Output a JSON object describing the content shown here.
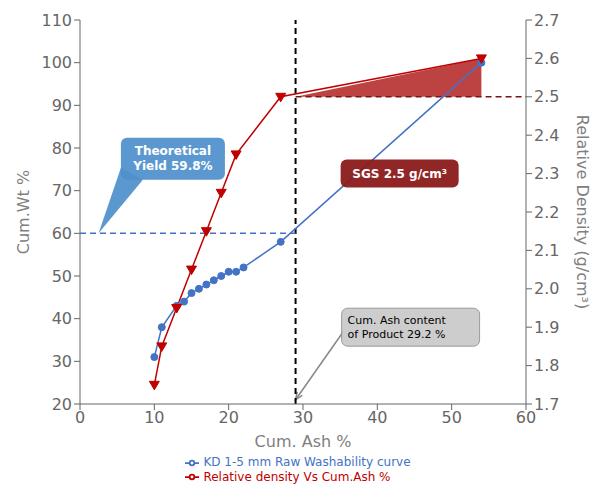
{
  "chart_data": {
    "type": "line",
    "xlabel": "Cum. Ash %",
    "ylabel": "Cum.Wt %",
    "y2label": "Relative Density (g/cm³)",
    "xlim": [
      0,
      60
    ],
    "xticks": [
      0,
      10,
      20,
      30,
      40,
      50,
      60
    ],
    "ylim": [
      20,
      110
    ],
    "yticks": [
      20,
      30,
      40,
      50,
      60,
      70,
      80,
      90,
      100,
      110
    ],
    "y2lim": [
      1.7,
      2.7
    ],
    "y2ticks": [
      1.7,
      1.8,
      1.9,
      {
        "value": 2,
        "label": "2.0"
      },
      2.1,
      2.2,
      2.3,
      2.4,
      2.5,
      2.6,
      2.7
    ],
    "grid": false,
    "legend": "bottom",
    "series": [
      {
        "name": "KD 1-5 mm Raw Washability curve",
        "color": "#4472C4",
        "marker": "circle",
        "line_style": "solid",
        "x": [
          10,
          11,
          13,
          14,
          15,
          16,
          17,
          18,
          19,
          20,
          21,
          22,
          27,
          54
        ],
        "values": [
          31,
          38,
          43,
          44,
          46,
          47,
          48,
          49,
          50,
          51,
          51,
          52,
          58,
          100
        ]
      },
      {
        "name": "Relative density Vs Cum.Ash %",
        "color": "#C00000",
        "marker": "triangle_down",
        "line_style": "solid",
        "axis": "y2",
        "x": [
          10,
          11,
          13,
          15,
          17,
          19,
          21,
          27,
          54
        ],
        "values": [
          1.75,
          1.85,
          1.95,
          2.05,
          2.15,
          2.25,
          2.35,
          2.5,
          2.6
        ]
      }
    ],
    "reference_lines": [
      {
        "x": 29,
        "color": "#000000",
        "line_style": "dashed"
      },
      {
        "y": 60,
        "x_range": [
          0,
          29
        ],
        "color": "#4472C4",
        "line_style": "dashed"
      },
      {
        "y": 2.5,
        "axis": "y2",
        "x_range": [
          29,
          60
        ],
        "color": "#7B1414",
        "line_style": "dashed"
      }
    ],
    "shaded_areas": [
      {
        "points": [
          [
            29,
            2.5
          ],
          [
            54,
            2.5
          ],
          [
            54,
            2.6
          ]
        ],
        "axis": "y2",
        "color": "#B22222"
      }
    ],
    "annotations": [
      {
        "text": "Theoretical\nYield 59.8%",
        "color": "#4E8FCC"
      },
      {
        "text": "SGS 2.5 g/cm³",
        "color": "#8B1A1A"
      },
      {
        "text": "Cum. Ash content\nof Product 29.2 %",
        "color": "#C8C8C8"
      }
    ]
  }
}
